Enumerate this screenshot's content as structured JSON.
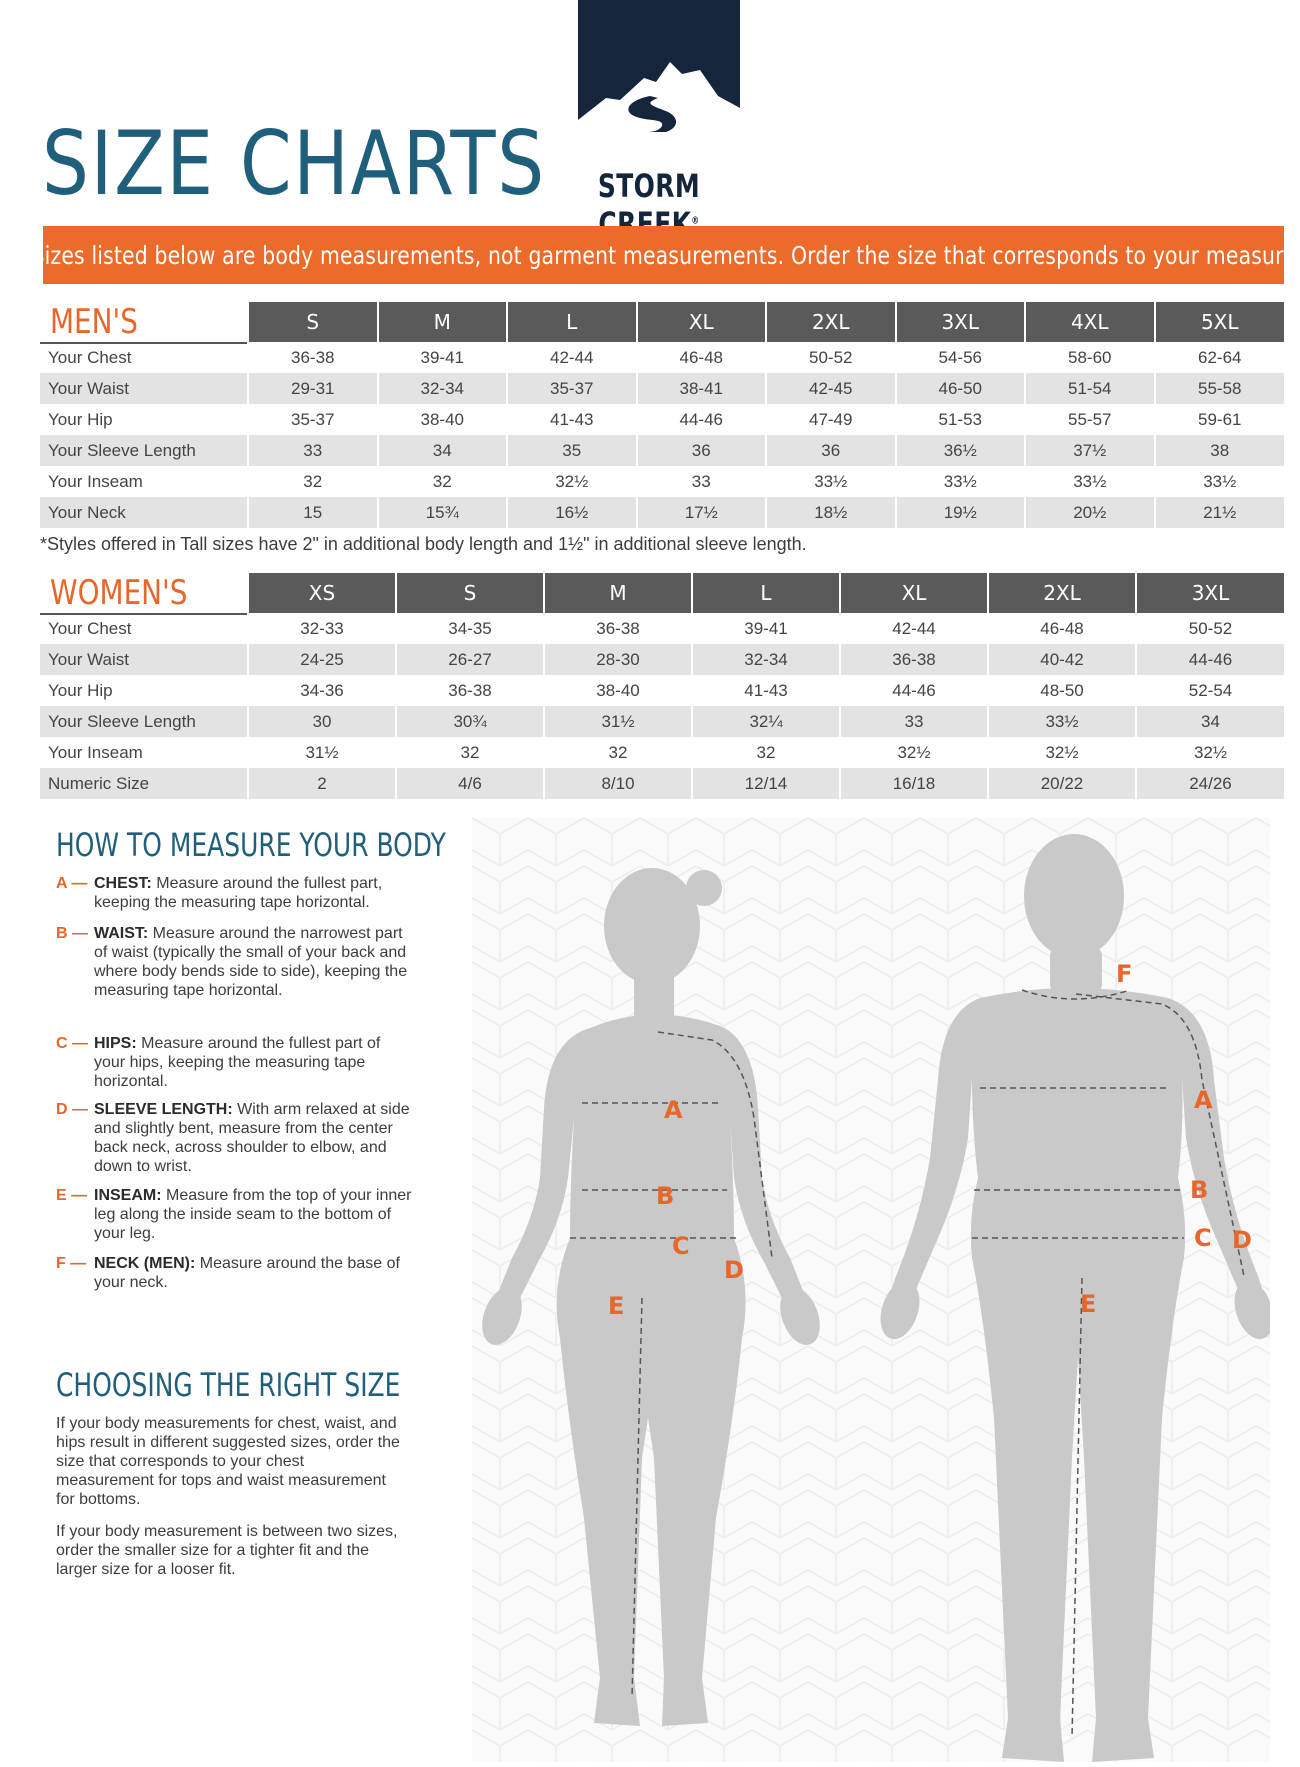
{
  "header": {
    "title": "SIZE CHARTS",
    "brand_name": "STORM CREEK",
    "brand_mark": "®",
    "note": "NOTE: Sizes listed below are body measurements, not garment measurements. Order the size that corresponds to your measurements."
  },
  "mens": {
    "label": "MEN'S",
    "sizes": [
      "S",
      "M",
      "L",
      "XL",
      "2XL",
      "3XL",
      "4XL",
      "5XL"
    ],
    "rows": [
      {
        "label": "Your Chest",
        "values": [
          "36-38",
          "39-41",
          "42-44",
          "46-48",
          "50-52",
          "54-56",
          "58-60",
          "62-64"
        ]
      },
      {
        "label": "Your Waist",
        "values": [
          "29-31",
          "32-34",
          "35-37",
          "38-41",
          "42-45",
          "46-50",
          "51-54",
          "55-58"
        ]
      },
      {
        "label": "Your Hip",
        "values": [
          "35-37",
          "38-40",
          "41-43",
          "44-46",
          "47-49",
          "51-53",
          "55-57",
          "59-61"
        ]
      },
      {
        "label": "Your Sleeve Length",
        "values": [
          "33",
          "34",
          "35",
          "36",
          "36",
          "36½",
          "37½",
          "38"
        ]
      },
      {
        "label": "Your Inseam",
        "values": [
          "32",
          "32",
          "32½",
          "33",
          "33½",
          "33½",
          "33½",
          "33½"
        ]
      },
      {
        "label": "Your Neck",
        "values": [
          "15",
          "15¾",
          "16½",
          "17½",
          "18½",
          "19½",
          "20½",
          "21½"
        ]
      }
    ],
    "footnote": "*Styles offered in Tall sizes have 2\" in additional body length and 1½\" in additional sleeve length."
  },
  "womens": {
    "label": "WOMEN'S",
    "sizes": [
      "XS",
      "S",
      "M",
      "L",
      "XL",
      "2XL",
      "3XL"
    ],
    "rows": [
      {
        "label": "Your Chest",
        "values": [
          "32-33",
          "34-35",
          "36-38",
          "39-41",
          "42-44",
          "46-48",
          "50-52"
        ]
      },
      {
        "label": "Your Waist",
        "values": [
          "24-25",
          "26-27",
          "28-30",
          "32-34",
          "36-38",
          "40-42",
          "44-46"
        ]
      },
      {
        "label": "Your Hip",
        "values": [
          "34-36",
          "36-38",
          "38-40",
          "41-43",
          "44-46",
          "48-50",
          "52-54"
        ]
      },
      {
        "label": "Your Sleeve Length",
        "values": [
          "30",
          "30¾",
          "31½",
          "32¼",
          "33",
          "33½",
          "34"
        ]
      },
      {
        "label": "Your Inseam",
        "values": [
          "31½",
          "32",
          "32",
          "32",
          "32½",
          "32½",
          "32½"
        ]
      },
      {
        "label": "Numeric Size",
        "values": [
          "2",
          "4/6",
          "8/10",
          "12/14",
          "16/18",
          "20/22",
          "24/26"
        ]
      }
    ]
  },
  "how_to_measure": {
    "heading": "HOW TO MEASURE YOUR BODY",
    "items": [
      {
        "letter": "A —",
        "name": "CHEST:",
        "text": "Measure around the fullest part, keeping the measuring tape horizontal."
      },
      {
        "letter": "B —",
        "name": "WAIST:",
        "text": "Measure around the narrowest part of waist (typically the small of your back and where body bends side to side), keeping the measuring tape horizontal."
      },
      {
        "letter": "C —",
        "name": "HIPS:",
        "text": "Measure around the fullest part of your hips, keeping the measuring tape horizontal."
      },
      {
        "letter": "D —",
        "name": "SLEEVE LENGTH:",
        "text": "With arm relaxed at side and slightly bent, measure from the center back neck, across shoulder to elbow, and down to wrist."
      },
      {
        "letter": "E —",
        "name": "INSEAM:",
        "text": "Measure from the top of your inner leg along the inside seam to the bottom of your leg."
      },
      {
        "letter": "F —",
        "name": "NECK (MEN):",
        "text": "Measure around the base of your neck."
      }
    ]
  },
  "choosing": {
    "heading": "CHOOSING THE RIGHT SIZE",
    "paragraphs": [
      "If your body measurements for chest, waist, and hips result in different suggested sizes, order the size that corresponds to your chest measurement for tops and waist measurement for bottoms.",
      "If your body measurement is between two sizes, order the smaller size for a tighter fit and the larger size for a looser fit."
    ]
  },
  "figure_labels": {
    "a": "A",
    "b": "B",
    "c": "C",
    "d": "D",
    "e": "E",
    "f": "F"
  },
  "colors": {
    "title_blue": "#1f5f7c",
    "accent_orange": "#ec6a2a",
    "navy": "#14253c",
    "header_gray": "#5a5a5a",
    "row_shade": "#e3e3e3",
    "silhouette": "#c9c9c9"
  }
}
